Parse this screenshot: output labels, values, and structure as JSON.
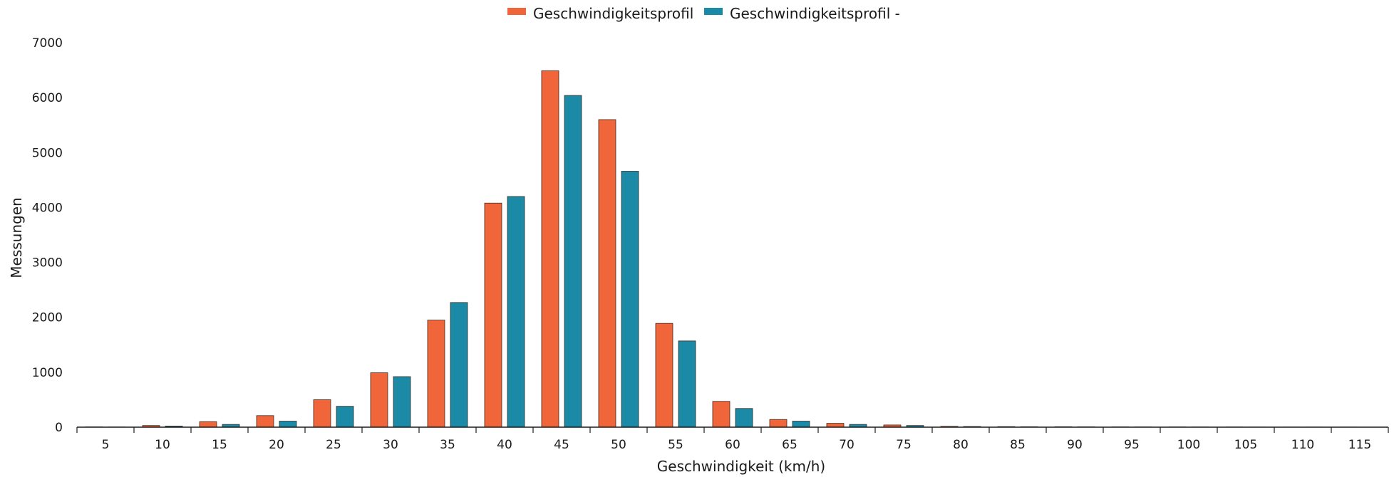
{
  "chart_data": {
    "type": "bar",
    "title": "",
    "xlabel": "Geschwindigkeit (km/h)",
    "ylabel": "Messungen",
    "categories": [
      "5",
      "10",
      "15",
      "20",
      "25",
      "30",
      "35",
      "40",
      "45",
      "50",
      "55",
      "60",
      "65",
      "70",
      "75",
      "80",
      "85",
      "90",
      "95",
      "100",
      "105",
      "110",
      "115"
    ],
    "ylim": [
      0,
      7000
    ],
    "yticks": [
      0,
      1000,
      2000,
      3000,
      4000,
      5000,
      6000,
      7000
    ],
    "grid": false,
    "legend_position": "top-center",
    "series": [
      {
        "name": "Geschwindigkeitsprofil",
        "color": "#f0663a",
        "values": [
          5,
          30,
          100,
          210,
          500,
          990,
          1950,
          4080,
          6490,
          5600,
          1890,
          470,
          140,
          70,
          40,
          15,
          10,
          8,
          5,
          4,
          3,
          2,
          2
        ]
      },
      {
        "name": "Geschwindigkeitsprofil -",
        "color": "#1b8aa6",
        "values": [
          3,
          20,
          50,
          110,
          380,
          920,
          2270,
          4200,
          6040,
          4660,
          1570,
          340,
          110,
          50,
          30,
          12,
          8,
          6,
          4,
          3,
          2,
          2,
          1
        ]
      }
    ]
  }
}
